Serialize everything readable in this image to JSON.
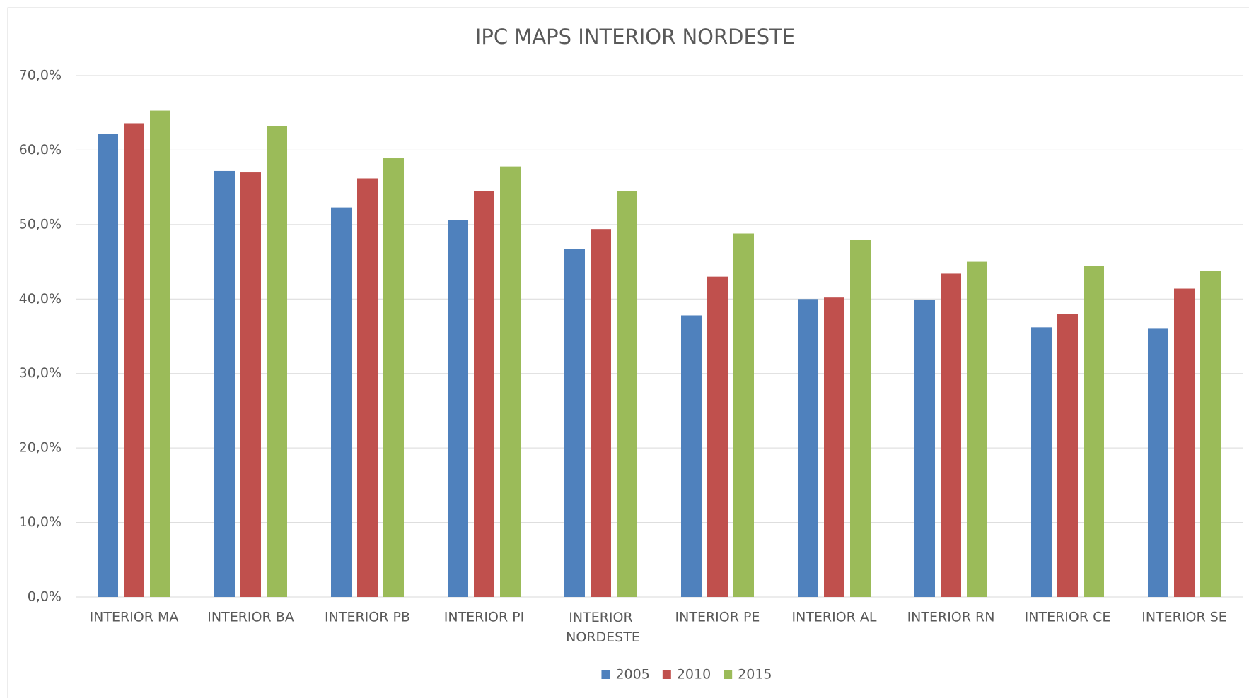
{
  "chart_data": {
    "type": "bar",
    "title": "IPC MAPS INTERIOR NORDESTE",
    "categories": [
      "INTERIOR MA",
      "INTERIOR BA",
      "INTERIOR PB",
      "INTERIOR PI",
      "INTERIOR NORDESTE",
      "INTERIOR PE",
      "INTERIOR AL",
      "INTERIOR RN",
      "INTERIOR CE",
      "INTERIOR SE"
    ],
    "series": [
      {
        "name": "2005",
        "color": "#4f81bd",
        "values": [
          62.2,
          57.2,
          52.3,
          50.6,
          46.7,
          37.8,
          40.0,
          39.9,
          36.2,
          36.1
        ]
      },
      {
        "name": "2010",
        "color": "#c0504d",
        "values": [
          63.6,
          57.0,
          56.2,
          54.5,
          49.4,
          43.0,
          40.2,
          43.4,
          38.0,
          41.4
        ]
      },
      {
        "name": "2015",
        "color": "#9bbb59",
        "values": [
          65.3,
          63.2,
          58.9,
          57.8,
          54.5,
          48.8,
          47.9,
          45.0,
          44.4,
          43.8
        ]
      }
    ],
    "ylim": [
      0,
      70
    ],
    "yticks": [
      {
        "value": 0,
        "label": "0,0%"
      },
      {
        "value": 10,
        "label": "10,0%"
      },
      {
        "value": 20,
        "label": "20,0%"
      },
      {
        "value": 30,
        "label": "30,0%"
      },
      {
        "value": 40,
        "label": "40,0%"
      },
      {
        "value": 50,
        "label": "50,0%"
      },
      {
        "value": 60,
        "label": "60,0%"
      },
      {
        "value": 70,
        "label": "70,0%"
      }
    ],
    "grid": true,
    "legend": "bottom"
  }
}
